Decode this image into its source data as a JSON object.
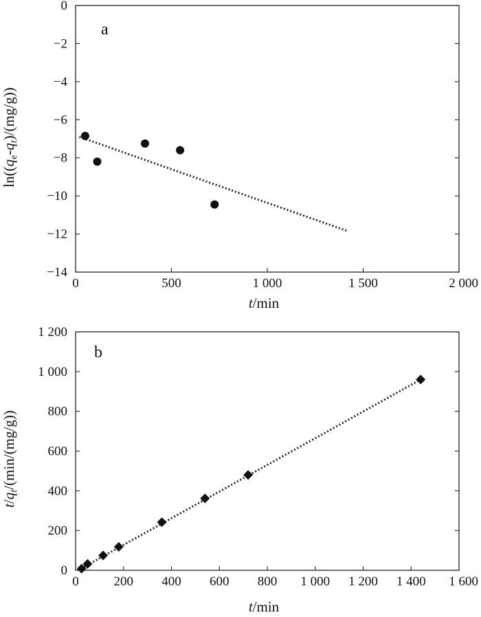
{
  "chart_data": [
    {
      "type": "scatter",
      "panel_label": "a",
      "xlabel_italic": "t",
      "xlabel_rest": "/min",
      "ylabel_parts": [
        "ln((",
        "q",
        "e",
        "-",
        "q",
        "t",
        ")/(mg/g))"
      ],
      "xlim": [
        0,
        2000
      ],
      "ylim": [
        -14,
        0
      ],
      "xticks": [
        0,
        500,
        1000,
        1500,
        2000
      ],
      "xtick_labels": [
        "0",
        "500",
        "1 000",
        "1 500",
        "2 000"
      ],
      "yticks": [
        0,
        -2,
        -4,
        -6,
        -8,
        -10,
        -12,
        -14
      ],
      "ytick_labels": [
        "0",
        "−2",
        "−4",
        "−6",
        "−8",
        "−10",
        "−12",
        "−14"
      ],
      "points": [
        {
          "x": 50,
          "y": -6.85
        },
        {
          "x": 113,
          "y": -8.2
        },
        {
          "x": 362,
          "y": -7.25
        },
        {
          "x": 545,
          "y": -7.6
        },
        {
          "x": 725,
          "y": -10.45
        }
      ],
      "marker": "circle",
      "fit_line": {
        "x": [
          20,
          1420
        ],
        "y": [
          -6.9,
          -11.85
        ]
      }
    },
    {
      "type": "scatter",
      "panel_label": "b",
      "xlabel_italic": "t",
      "xlabel_rest": "/min",
      "ylabel_parts": [
        "t",
        "/",
        "q",
        "t",
        "/(min/(mg/g))"
      ],
      "xlim": [
        0,
        1600
      ],
      "ylim": [
        0,
        1200
      ],
      "xticks": [
        0,
        200,
        400,
        600,
        800,
        1000,
        1200,
        1400,
        1600
      ],
      "xtick_labels": [
        "0",
        "200",
        "400",
        "600",
        "800",
        "1 000",
        "1 200",
        "1 400",
        "1 600"
      ],
      "yticks": [
        0,
        200,
        400,
        600,
        800,
        1000,
        1200
      ],
      "ytick_labels": [
        "0",
        "200",
        "400",
        "600",
        "800",
        "1 000",
        "1 200"
      ],
      "points": [
        {
          "x": 25,
          "y": 8
        },
        {
          "x": 50,
          "y": 32
        },
        {
          "x": 115,
          "y": 75
        },
        {
          "x": 180,
          "y": 118
        },
        {
          "x": 360,
          "y": 242
        },
        {
          "x": 540,
          "y": 362
        },
        {
          "x": 720,
          "y": 480
        },
        {
          "x": 1440,
          "y": 960
        }
      ],
      "marker": "diamond",
      "fit_line": {
        "x": [
          10,
          1440
        ],
        "y": [
          0,
          960
        ]
      }
    }
  ]
}
